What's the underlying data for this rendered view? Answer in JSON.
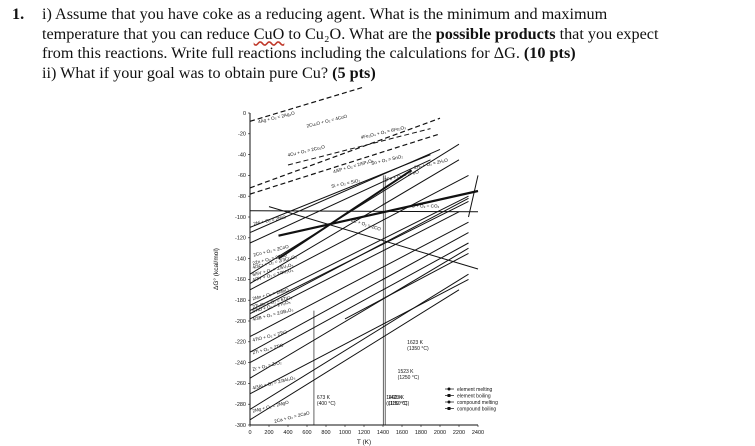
{
  "question": {
    "number": "1.",
    "part1_lines": [
      [
        "i) Assume that you have coke as a reducing agent. What is the minimum and maximum"
      ],
      [
        "temperature that you can reduce ",
        "CuO",
        " to Cu₂O. What are the ",
        "possible products",
        " that you expect"
      ],
      [
        "from this reactions. Write full reactions including the calculations for ΔG. ",
        "(10 pts)"
      ]
    ],
    "part2": [
      "ii) What if your goal was to obtain pure Cu? ",
      "(5 pts)"
    ]
  },
  "figure": {
    "ylabel": "ΔG° (kcal/mol)",
    "xlabel": "T (K)",
    "y_ticks": [
      "0",
      "-20",
      "-40",
      "-60",
      "-80",
      "-100",
      "-120",
      "-140",
      "-160",
      "-180",
      "-200",
      "-220",
      "-240",
      "-260",
      "-280",
      "-300"
    ],
    "x_ticks": [
      "0",
      "200",
      "400",
      "600",
      "800",
      "1000",
      "1200",
      "1400",
      "1600",
      "1800",
      "2000",
      "2200",
      "2400"
    ],
    "reaction_labels": [
      "4Ag + O₂ = 2Ag₂O",
      "2Cu₂O + O₂ = 4CuO",
      "4Cu + O₂ = 2Cu₂O",
      "4Fe₃O₄ + O₂ = 6Fe₂O₃",
      "2Ni + O₂ = 2NiO",
      "4/5P + O₂ = 2/5P₂O₅",
      "2Co + O₂ = 2CoO",
      "Sn + O₂ = SnO₂",
      "2Fe + O₂ = 2FeO",
      "2H₂ + O₂ = 2H₂O",
      "C + O₂ = CO₂",
      "2C + O₂ = 2CO",
      "2Zn + O₂ = 2ZnO",
      "4/3Cr + O₂ = 2/3Cr₂O₃",
      "Si + O₂ = SiO₂",
      "6/5V + O₂ = 2/5V₂O₅",
      "4/3V + O₂ = 2/3V₂O₃",
      "2Mn + O₂ = 2MnO",
      "2Ti₃O₅ + O₂ = 6TiO₂",
      "6TiO + O₂ = 2Ti₃O₅",
      "4/3B + O₂ = 2/3B₂O₃",
      "4TiO + O₂ = 2TiO",
      "2Ti + O₂ = 2TiO",
      "Zr + O₂ = ZrO₂",
      "4/3Al + O₂ = 2/3Al₂O₃",
      "2Mg + O₂ = 2MgO",
      "2Ca + O₂ = 2CaO"
    ],
    "annotations": [
      {
        "l1": "673 K",
        "l2": "(400 °C)"
      },
      {
        "l1": "1403 K",
        "l2": "(1130 °C)"
      },
      {
        "l1": "1423 K",
        "l2": "(1150 °C)"
      },
      {
        "l1": "1523 K",
        "l2": "(1250 °C)"
      },
      {
        "l1": "1623 K",
        "l2": "(1350 °C)"
      }
    ],
    "legend": [
      "element melting",
      "element boiling",
      "compound melting",
      "compound boiling"
    ]
  }
}
